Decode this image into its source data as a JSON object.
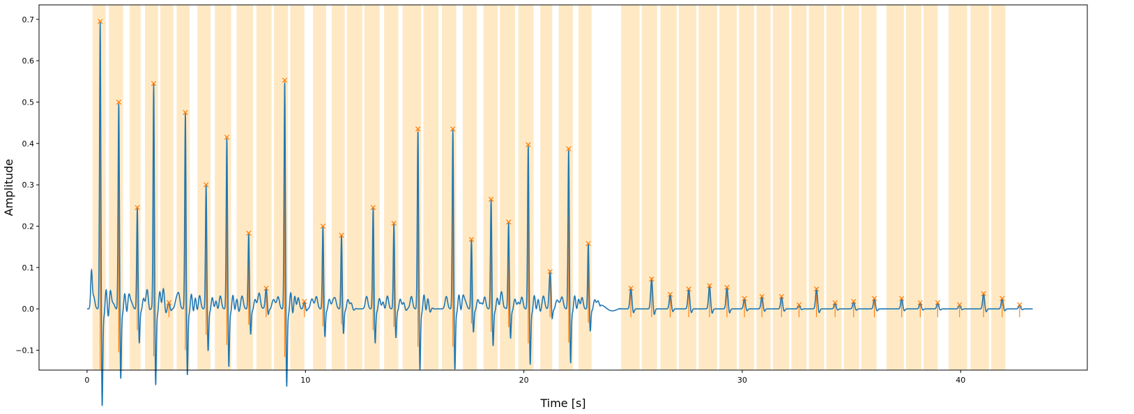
{
  "chart_data": {
    "type": "line",
    "title": "",
    "xlabel": "Time [s]",
    "ylabel": "Amplitude",
    "xlim": [
      -2.2,
      45.8
    ],
    "ylim": [
      -0.148,
      0.735
    ],
    "xticks": [
      0,
      10,
      20,
      30,
      40
    ],
    "yticks": [
      -0.1,
      0.0,
      0.1,
      0.2,
      0.3,
      0.4,
      0.5,
      0.6,
      0.7
    ],
    "grid": false,
    "legend": "none",
    "series": [
      {
        "color": "#1f77b4",
        "peaks": [
          {
            "t": 0.6,
            "a": 0.695
          },
          {
            "t": 1.45,
            "a": 0.5
          },
          {
            "t": 2.3,
            "a": 0.245
          },
          {
            "t": 3.05,
            "a": 0.545
          },
          {
            "t": 3.75,
            "a": 0.015
          },
          {
            "t": 4.5,
            "a": 0.475
          },
          {
            "t": 5.45,
            "a": 0.3
          },
          {
            "t": 6.4,
            "a": 0.415
          },
          {
            "t": 7.4,
            "a": 0.183
          },
          {
            "t": 8.2,
            "a": 0.05
          },
          {
            "t": 9.05,
            "a": 0.553
          },
          {
            "t": 9.95,
            "a": 0.018
          },
          {
            "t": 10.8,
            "a": 0.2
          },
          {
            "t": 11.65,
            "a": 0.178
          },
          {
            "t": 13.1,
            "a": 0.245
          },
          {
            "t": 14.05,
            "a": 0.207
          },
          {
            "t": 15.15,
            "a": 0.435
          },
          {
            "t": 16.75,
            "a": 0.435
          },
          {
            "t": 17.6,
            "a": 0.168
          },
          {
            "t": 18.5,
            "a": 0.265
          },
          {
            "t": 19.3,
            "a": 0.21
          },
          {
            "t": 20.2,
            "a": 0.397
          },
          {
            "t": 21.2,
            "a": 0.09
          },
          {
            "t": 22.05,
            "a": 0.387
          },
          {
            "t": 22.95,
            "a": 0.158
          },
          {
            "t": 24.9,
            "a": 0.05
          },
          {
            "t": 25.85,
            "a": 0.072
          },
          {
            "t": 26.7,
            "a": 0.035
          },
          {
            "t": 27.55,
            "a": 0.048
          },
          {
            "t": 28.5,
            "a": 0.056
          },
          {
            "t": 29.3,
            "a": 0.052
          },
          {
            "t": 30.1,
            "a": 0.025
          },
          {
            "t": 30.9,
            "a": 0.03
          },
          {
            "t": 31.8,
            "a": 0.03
          },
          {
            "t": 32.6,
            "a": 0.01
          },
          {
            "t": 33.4,
            "a": 0.048
          },
          {
            "t": 34.25,
            "a": 0.015
          },
          {
            "t": 35.1,
            "a": 0.018
          },
          {
            "t": 36.05,
            "a": 0.025
          },
          {
            "t": 37.3,
            "a": 0.025
          },
          {
            "t": 38.15,
            "a": 0.015
          },
          {
            "t": 38.95,
            "a": 0.015
          },
          {
            "t": 39.95,
            "a": 0.01
          },
          {
            "t": 41.05,
            "a": 0.037
          },
          {
            "t": 41.9,
            "a": 0.025
          },
          {
            "t": 42.7,
            "a": 0.01
          }
        ],
        "t_end": 43.3
      }
    ],
    "peak_markers": {
      "color": "#ff7f0e",
      "marker": "x"
    },
    "highlight_bands": {
      "color": "#ffe9c4",
      "intervals": [
        [
          0.25,
          0.85
        ],
        [
          1.0,
          1.65
        ],
        [
          1.95,
          2.45
        ],
        [
          2.65,
          3.25
        ],
        [
          3.35,
          3.95
        ],
        [
          4.1,
          4.7
        ],
        [
          5.05,
          5.65
        ],
        [
          5.85,
          6.6
        ],
        [
          6.85,
          7.6
        ],
        [
          7.75,
          8.45
        ],
        [
          8.55,
          9.2
        ],
        [
          9.3,
          9.95
        ],
        [
          10.35,
          10.95
        ],
        [
          11.2,
          11.8
        ],
        [
          11.9,
          12.6
        ],
        [
          12.7,
          13.4
        ],
        [
          13.6,
          14.25
        ],
        [
          14.45,
          15.3
        ],
        [
          15.4,
          16.1
        ],
        [
          16.25,
          16.9
        ],
        [
          17.2,
          17.85
        ],
        [
          18.15,
          18.8
        ],
        [
          18.9,
          19.6
        ],
        [
          19.75,
          20.45
        ],
        [
          20.75,
          21.3
        ],
        [
          21.6,
          22.25
        ],
        [
          22.5,
          23.1
        ],
        [
          24.45,
          25.3
        ],
        [
          25.4,
          26.1
        ],
        [
          26.25,
          27.0
        ],
        [
          27.1,
          27.9
        ],
        [
          28.0,
          28.85
        ],
        [
          28.95,
          29.75
        ],
        [
          29.85,
          30.55
        ],
        [
          30.65,
          31.3
        ],
        [
          31.4,
          32.15
        ],
        [
          32.25,
          32.95
        ],
        [
          33.05,
          33.75
        ],
        [
          33.85,
          34.55
        ],
        [
          34.65,
          35.35
        ],
        [
          35.45,
          36.15
        ],
        [
          36.6,
          37.4
        ],
        [
          37.5,
          38.2
        ],
        [
          38.3,
          38.95
        ],
        [
          39.45,
          40.3
        ],
        [
          40.45,
          41.3
        ],
        [
          41.4,
          42.05
        ]
      ]
    }
  }
}
